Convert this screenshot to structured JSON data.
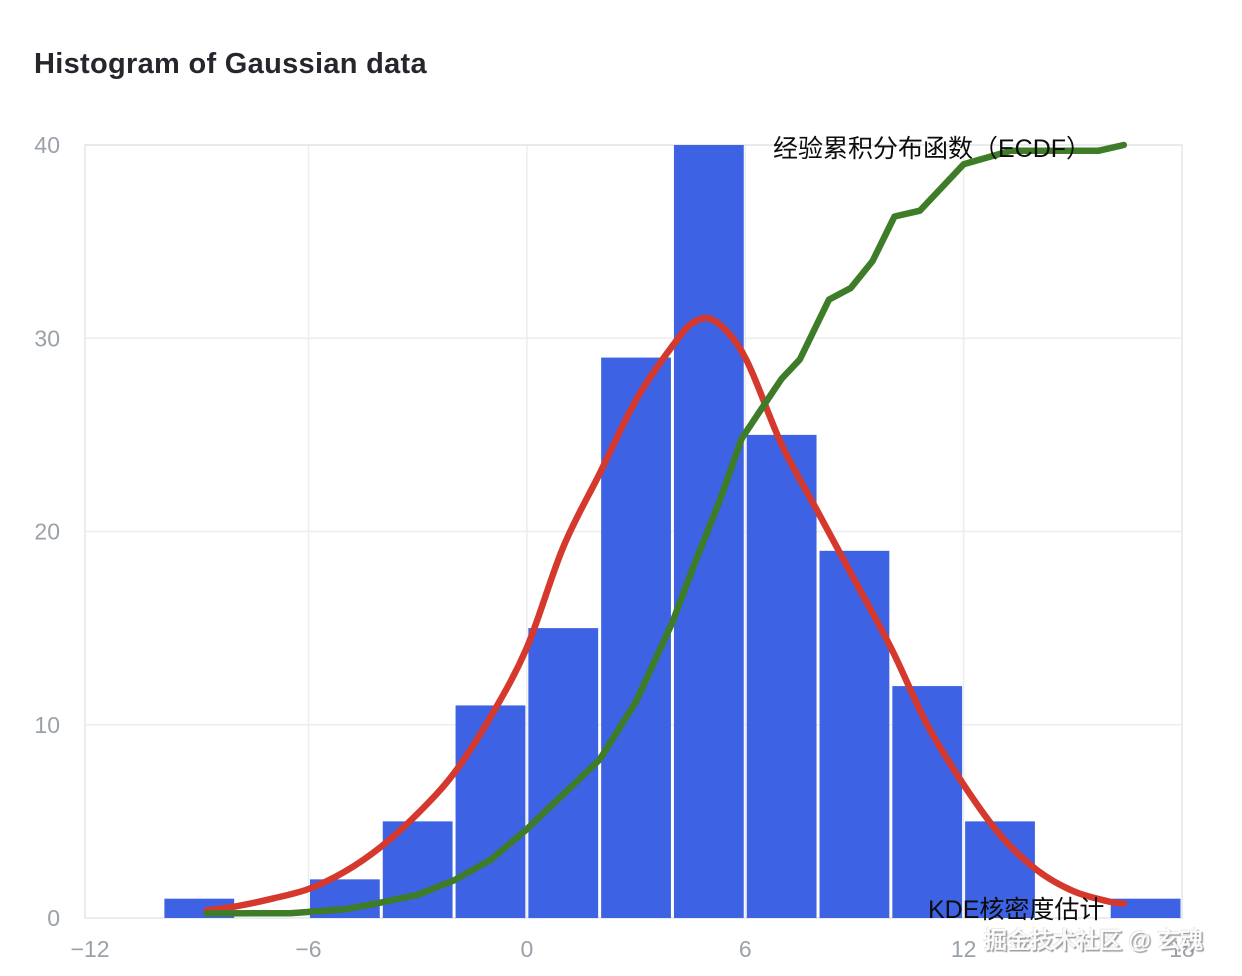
{
  "header": {
    "title": "Histogram of Gaussian data"
  },
  "watermark": {
    "text": "掘金技术社区 @ 玄魂"
  },
  "colors": {
    "bar_fill": "#3D62E4",
    "kde_line": "#D5392E",
    "ecdf_line": "#3E7C28",
    "grid_line": "#ededed",
    "plot_border": "#e4e6ea",
    "tick_label": "#9ba1a9",
    "title_text": "#25272c",
    "annotation_text": "#0c0c0c",
    "background": "#ffffff"
  },
  "chart_data": {
    "type": "bar",
    "title": "Histogram of Gaussian data",
    "xlabel": "",
    "ylabel": "",
    "grid": true,
    "legend_position": "inline-annotations",
    "x_axis": {
      "range": [
        -12.14,
        18.0
      ],
      "tick_values": [
        -12,
        -6,
        0,
        6,
        12,
        18
      ],
      "tick_labels": [
        "−12",
        "−6",
        "0",
        "6",
        "12",
        "18"
      ],
      "gridline_values": [
        -6,
        0,
        6,
        12
      ]
    },
    "y_axis": {
      "range": [
        0,
        40
      ],
      "tick_values": [
        0,
        10,
        20,
        30,
        40
      ],
      "tick_labels": [
        "0",
        "10",
        "20",
        "30",
        "40"
      ],
      "gridline_values": [
        10,
        20,
        30,
        40
      ]
    },
    "histogram": {
      "bin_edges": [
        -10,
        -8,
        -6,
        -4,
        -2,
        0,
        2,
        4,
        6,
        8,
        10,
        12,
        14,
        16,
        18
      ],
      "counts": [
        1,
        0,
        2,
        5,
        11,
        15,
        29,
        40,
        25,
        19,
        12,
        5,
        0,
        1
      ]
    },
    "series": [
      {
        "name": "KDE核密度估计",
        "type": "line",
        "smooth": true,
        "points": [
          [
            -8.8,
            0.4
          ],
          [
            -8,
            0.6
          ],
          [
            -7,
            1.0
          ],
          [
            -6,
            1.5
          ],
          [
            -5,
            2.4
          ],
          [
            -4,
            3.7
          ],
          [
            -3,
            5.4
          ],
          [
            -2,
            7.5
          ],
          [
            -1,
            10.4
          ],
          [
            0,
            14.0
          ],
          [
            1,
            19.2
          ],
          [
            2,
            23.0
          ],
          [
            3,
            26.8
          ],
          [
            4,
            29.6
          ],
          [
            4.6,
            30.85
          ],
          [
            5.2,
            30.85
          ],
          [
            6,
            29.0
          ],
          [
            7,
            24.5
          ],
          [
            8,
            21.0
          ],
          [
            9,
            17.5
          ],
          [
            10,
            14.0
          ],
          [
            11,
            10.0
          ],
          [
            12,
            6.9
          ],
          [
            13,
            4.3
          ],
          [
            14,
            2.5
          ],
          [
            15,
            1.4
          ],
          [
            16,
            0.85
          ],
          [
            16.4,
            0.75
          ]
        ]
      },
      {
        "name": "经验累积分布函数（ECDF）",
        "type": "line",
        "smooth": false,
        "points": [
          [
            -8.8,
            0.24
          ],
          [
            -6.5,
            0.25
          ],
          [
            -5,
            0.45
          ],
          [
            -4,
            0.8
          ],
          [
            -3,
            1.2
          ],
          [
            -2,
            1.95
          ],
          [
            -1,
            3.0
          ],
          [
            0,
            4.6
          ],
          [
            1,
            6.4
          ],
          [
            2,
            8.2
          ],
          [
            3,
            11.2
          ],
          [
            4,
            15.3
          ],
          [
            4.6,
            18.3
          ],
          [
            5.3,
            21.6
          ],
          [
            5.9,
            24.8
          ],
          [
            6.5,
            26.5
          ],
          [
            7,
            27.9
          ],
          [
            7.5,
            28.9
          ],
          [
            8.3,
            32.0
          ],
          [
            8.9,
            32.6
          ],
          [
            9.5,
            34.0
          ],
          [
            10.1,
            36.3
          ],
          [
            10.8,
            36.6
          ],
          [
            12,
            39.0
          ],
          [
            13.3,
            39.7
          ],
          [
            15.7,
            39.7
          ],
          [
            16.4,
            40.0
          ]
        ]
      }
    ],
    "annotations": [
      {
        "text": "经验累积分布函数（ECDF）",
        "series": "ecdf"
      },
      {
        "text": "KDE核密度估计",
        "series": "kde"
      }
    ]
  }
}
